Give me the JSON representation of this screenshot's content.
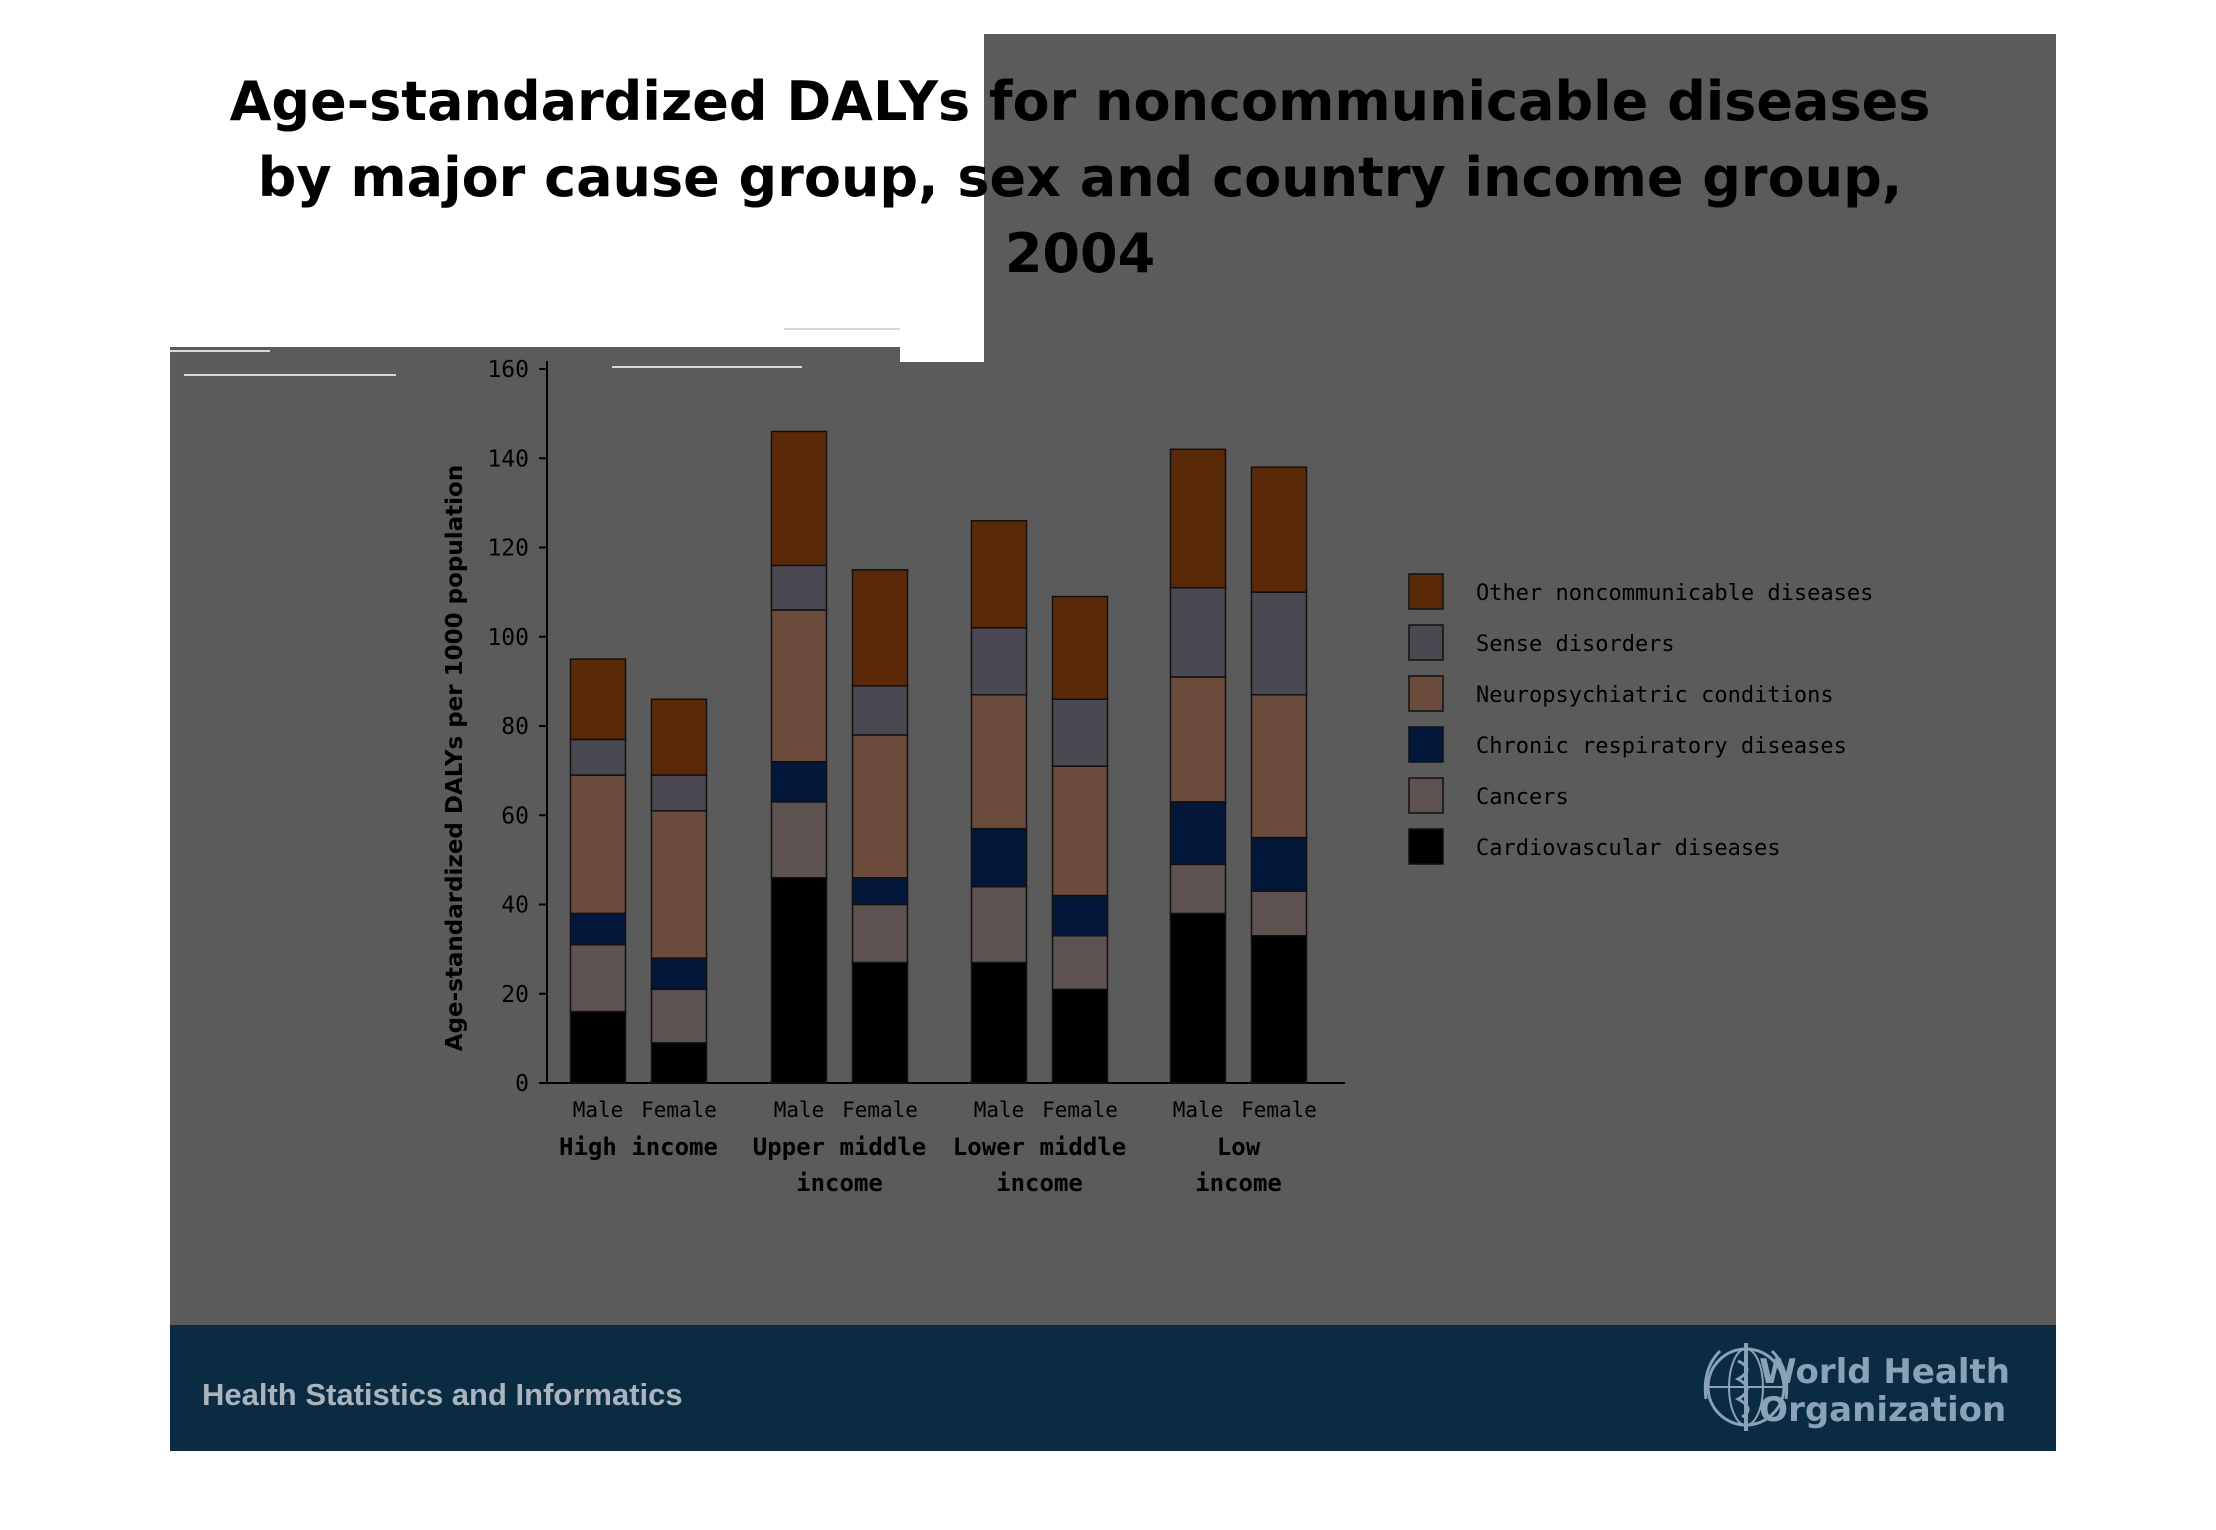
{
  "title": "Age-standardized DALYs for noncommunicable diseases by major cause group,  sex and country income group, 2004",
  "footer": {
    "text": "Health Statistics and Informatics",
    "org_line1": "World Health",
    "org_line2": "Organization",
    "logo_icon": "who-emblem-icon"
  },
  "chart_data": {
    "type": "bar",
    "stacked": true,
    "ylabel": "Age-standardized DALYs per 1000 population",
    "ylim": [
      0,
      160
    ],
    "yticks": [
      0,
      20,
      40,
      60,
      80,
      100,
      120,
      140,
      160
    ],
    "groups": [
      "High income",
      "Upper middle income",
      "Lower middle income",
      "Low income"
    ],
    "categories": [
      "Male",
      "Female",
      "Male",
      "Female",
      "Male",
      "Female",
      "Male",
      "Female"
    ],
    "legend_position": "right",
    "grid": false,
    "series": [
      {
        "name": "Cardiovascular diseases",
        "color": "#000000",
        "values": [
          16,
          9,
          46,
          27,
          27,
          21,
          38,
          33
        ]
      },
      {
        "name": "Cancers",
        "color": "#5e5250",
        "values": [
          15,
          12,
          17,
          13,
          17,
          12,
          11,
          10
        ]
      },
      {
        "name": "Chronic respiratory diseases",
        "color": "#02173a",
        "values": [
          7,
          7,
          9,
          6,
          13,
          9,
          14,
          12
        ]
      },
      {
        "name": "Neuropsychiatric conditions",
        "color": "#6b4c3c",
        "values": [
          31,
          33,
          34,
          32,
          30,
          29,
          28,
          32
        ]
      },
      {
        "name": "Sense disorders",
        "color": "#4a4850",
        "values": [
          8,
          8,
          10,
          11,
          15,
          15,
          20,
          23
        ]
      },
      {
        "name": "Other noncommunicable diseases",
        "color": "#5a2a08",
        "values": [
          18,
          17,
          30,
          26,
          24,
          23,
          31,
          28
        ]
      }
    ]
  }
}
